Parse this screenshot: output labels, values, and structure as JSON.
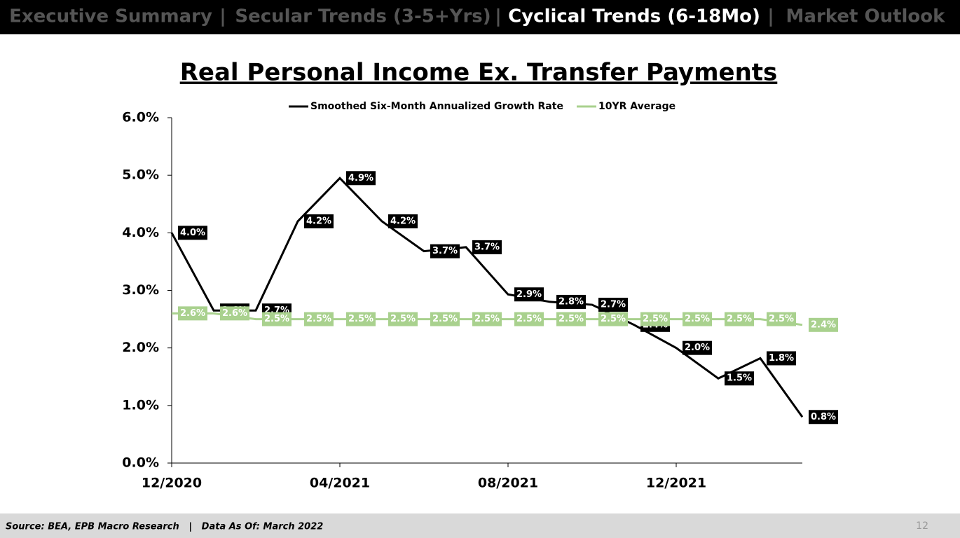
{
  "nav": {
    "items": [
      "Executive Summary",
      "Secular Trends (3-5+Yrs)",
      "Cyclical Trends (6-18Mo)",
      "Market Outlook"
    ],
    "separator": "|",
    "active": 2
  },
  "chart_data": {
    "type": "line",
    "title": "Real Personal Income Ex. Transfer Payments",
    "categories": [
      "12/2020",
      null,
      null,
      null,
      "04/2021",
      null,
      null,
      null,
      "08/2021",
      null,
      null,
      null,
      "12/2021",
      null,
      null,
      null
    ],
    "series": [
      {
        "name": "Smoothed Six-Month Annualized Growth Rate",
        "color": "#000000",
        "values": [
          4.0,
          2.65,
          2.65,
          4.2,
          4.95,
          4.2,
          3.68,
          3.75,
          2.93,
          2.8,
          2.75,
          2.4,
          2.0,
          1.47,
          1.82,
          0.8
        ],
        "value_labels": [
          "4.0%",
          "2.6%",
          "2.7%",
          "4.2%",
          "4.9%",
          "4.2%",
          "3.7%",
          "3.7%",
          "2.9%",
          "2.8%",
          "2.7%",
          "2.4%",
          "2.0%",
          "1.5%",
          "1.8%",
          "0.8%"
        ]
      },
      {
        "name": "10YR Average",
        "color": "#a9d18e",
        "values": [
          2.6,
          2.6,
          2.5,
          2.5,
          2.5,
          2.5,
          2.5,
          2.5,
          2.5,
          2.5,
          2.5,
          2.5,
          2.5,
          2.5,
          2.5,
          2.4
        ],
        "value_labels": [
          "2.6%",
          "2.6%",
          "2.5%",
          "2.5%",
          "2.5%",
          "2.5%",
          "2.5%",
          "2.5%",
          "2.5%",
          "2.5%",
          "2.5%",
          "2.5%",
          "2.5%",
          "2.5%",
          "2.5%",
          "2.4%"
        ]
      }
    ],
    "ylim": [
      0,
      6
    ],
    "yticks": [
      {
        "value": 0,
        "label": "0.0%"
      },
      {
        "value": 1,
        "label": "1.0%"
      },
      {
        "value": 2,
        "label": "2.0%"
      },
      {
        "value": 3,
        "label": "3.0%"
      },
      {
        "value": 4,
        "label": "4.0%"
      },
      {
        "value": 5,
        "label": "5.0%"
      },
      {
        "value": 6,
        "label": "6.0%"
      }
    ],
    "legend": "top",
    "grid": false
  },
  "footer": {
    "source": "Source: BEA, EPB Macro Research   |   Data As Of: March 2022",
    "page": "12"
  }
}
